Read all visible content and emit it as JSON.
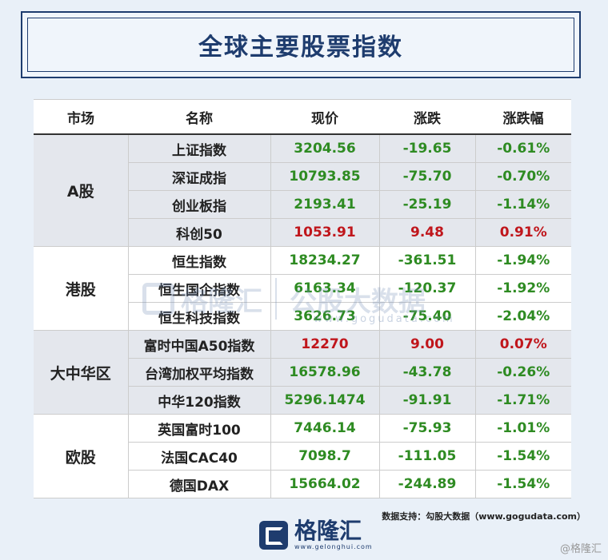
{
  "title": "全球主要股票指数",
  "headers": [
    "市场",
    "名称",
    "现价",
    "涨跌",
    "涨跌幅"
  ],
  "groups": [
    {
      "market": "A股",
      "rows": [
        {
          "name": "上证指数",
          "price": "3204.56",
          "change": "-19.65",
          "pct": "-0.61%",
          "dir": "down"
        },
        {
          "name": "深证成指",
          "price": "10793.85",
          "change": "-75.70",
          "pct": "-0.70%",
          "dir": "down"
        },
        {
          "name": "创业板指",
          "price": "2193.41",
          "change": "-25.19",
          "pct": "-1.14%",
          "dir": "down"
        },
        {
          "name": "科创50",
          "price": "1053.91",
          "change": "9.48",
          "pct": "0.91%",
          "dir": "up"
        }
      ]
    },
    {
      "market": "港股",
      "rows": [
        {
          "name": "恒生指数",
          "price": "18234.27",
          "change": "-361.51",
          "pct": "-1.94%",
          "dir": "down"
        },
        {
          "name": "恒生国企指数",
          "price": "6163.34",
          "change": "-120.37",
          "pct": "-1.92%",
          "dir": "down"
        },
        {
          "name": "恒生科技指数",
          "price": "3626.73",
          "change": "-75.40",
          "pct": "-2.04%",
          "dir": "down"
        }
      ]
    },
    {
      "market": "大中华区",
      "rows": [
        {
          "name": "富时中国A50指数",
          "price": "12270",
          "change": "9.00",
          "pct": "0.07%",
          "dir": "up"
        },
        {
          "name": "台湾加权平均指数",
          "price": "16578.96",
          "change": "-43.78",
          "pct": "-0.26%",
          "dir": "down"
        },
        {
          "name": "中华120指数",
          "price": "5296.1474",
          "change": "-91.91",
          "pct": "-1.71%",
          "dir": "down"
        }
      ]
    },
    {
      "market": "欧股",
      "rows": [
        {
          "name": "英国富时100",
          "price": "7446.14",
          "change": "-75.93",
          "pct": "-1.01%",
          "dir": "down"
        },
        {
          "name": "法国CAC40",
          "price": "7098.7",
          "change": "-111.05",
          "pct": "-1.54%",
          "dir": "down"
        },
        {
          "name": "德国DAX",
          "price": "15664.02",
          "change": "-244.89",
          "pct": "-1.54%",
          "dir": "down"
        }
      ]
    }
  ],
  "watermark": {
    "brand": "格隆汇",
    "partner": "公股大数据",
    "url": "www.gogudata.com"
  },
  "source": "数据支持：勾股大数据（www.gogudata.com）",
  "logo": {
    "name": "格隆汇",
    "url": "www.gelonghui.com"
  },
  "corner_mark": "@格隆汇",
  "colors": {
    "up": "#c0161c",
    "down": "#2e8b22",
    "brand": "#1e3c6e"
  }
}
